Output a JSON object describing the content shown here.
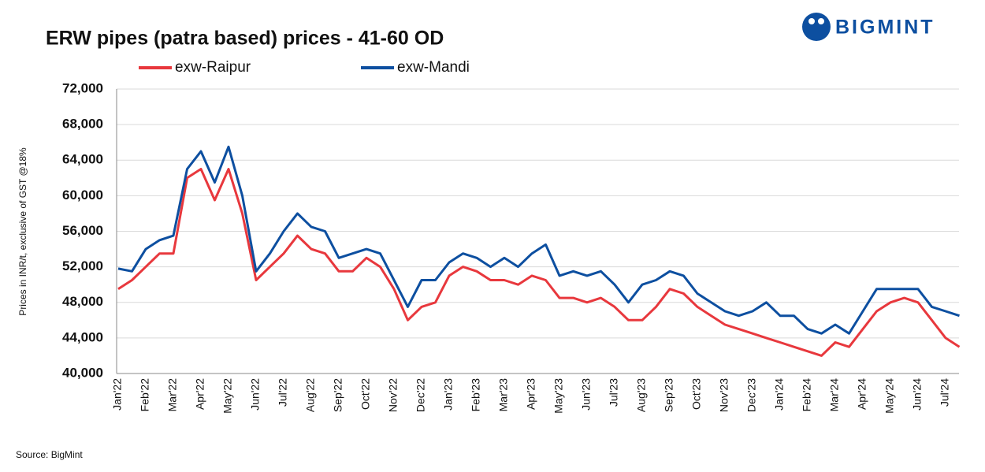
{
  "logo": "BIGMINT",
  "chart_data": {
    "type": "line",
    "title": "ERW pipes (patra based) prices - 41-60 OD",
    "y_label": "Prices in INR/t, exclusive of GST @18%",
    "source": "Source: BigMint",
    "categories": [
      "Jan'22",
      null,
      "Feb'22",
      null,
      "Mar'22",
      null,
      "Apr'22",
      null,
      "May'22",
      null,
      "Jun'22",
      null,
      "Jul'22",
      null,
      "Aug'22",
      null,
      "Sep'22",
      null,
      "Oct'22",
      null,
      "Nov'22",
      null,
      "Dec'22",
      null,
      "Jan'23",
      null,
      "Feb'23",
      null,
      "Mar'23",
      null,
      "Apr'23",
      null,
      "May'23",
      null,
      "Jun'23",
      null,
      "Jul'23",
      null,
      "Aug'23",
      null,
      "Sep'23",
      null,
      "Oct'23",
      null,
      "Nov'23",
      null,
      "Dec'23",
      null,
      "Jan'24",
      null,
      "Feb'24",
      null,
      "Mar'24",
      null,
      "Apr'24",
      null,
      "May'24",
      null,
      "Jun'24",
      null,
      "Jul'24",
      null
    ],
    "series": [
      {
        "name": "exw-Raipur",
        "color": "#e8383d",
        "values": [
          49500,
          50500,
          52000,
          53500,
          53500,
          62000,
          63000,
          59500,
          63000,
          58000,
          50500,
          52000,
          53500,
          55500,
          54000,
          53500,
          51500,
          51500,
          53000,
          52000,
          49500,
          46000,
          47500,
          48000,
          51000,
          52000,
          51500,
          50500,
          50500,
          50000,
          51000,
          50500,
          48500,
          48500,
          48000,
          48500,
          47500,
          46000,
          46000,
          47500,
          49500,
          49000,
          47500,
          46500,
          45500,
          45000,
          44500,
          44000,
          43500,
          43000,
          42500,
          42000,
          43500,
          43000,
          45000,
          47000,
          48000,
          48500,
          48000,
          46000,
          44000,
          43000
        ]
      },
      {
        "name": "exw-Mandi",
        "color": "#0d4fa0",
        "values": [
          51800,
          51500,
          54000,
          55000,
          55500,
          63000,
          65000,
          61500,
          65500,
          60000,
          51500,
          53500,
          56000,
          58000,
          56500,
          56000,
          53000,
          53500,
          54000,
          53500,
          50500,
          47500,
          50500,
          50500,
          52500,
          53500,
          53000,
          52000,
          53000,
          52000,
          53500,
          54500,
          51000,
          51500,
          51000,
          51500,
          50000,
          48000,
          50000,
          50500,
          51500,
          51000,
          49000,
          48000,
          47000,
          46500,
          47000,
          48000,
          46500,
          46500,
          45000,
          44500,
          45500,
          44500,
          47000,
          49500,
          49500,
          49500,
          49500,
          47500,
          47000,
          46500
        ]
      }
    ],
    "ylim": [
      40000,
      72000
    ],
    "yticks": [
      {
        "value": 40000,
        "label": "40,000"
      },
      {
        "value": 44000,
        "label": "44,000"
      },
      {
        "value": 48000,
        "label": "48,000"
      },
      {
        "value": 52000,
        "label": "52,000"
      },
      {
        "value": 56000,
        "label": "56,000"
      },
      {
        "value": 60000,
        "label": "60,000"
      },
      {
        "value": 64000,
        "label": "64,000"
      },
      {
        "value": 68000,
        "label": "68,000"
      },
      {
        "value": 72000,
        "label": "72,000"
      }
    ],
    "grid": true
  }
}
